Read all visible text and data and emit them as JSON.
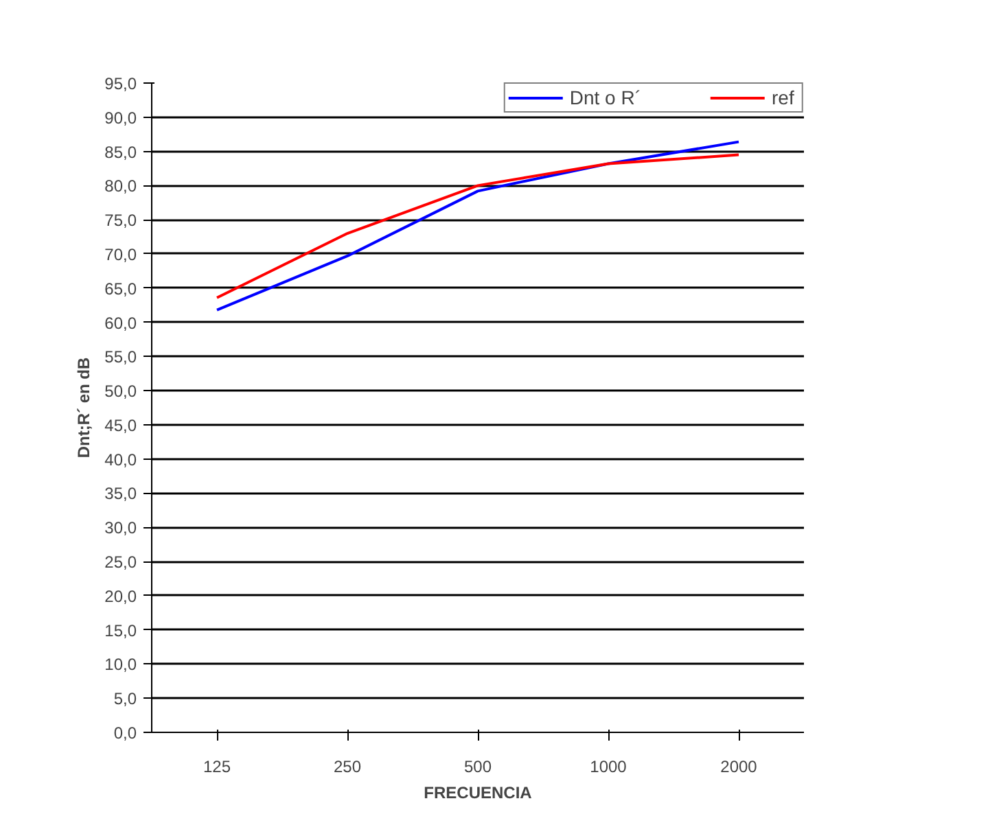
{
  "chart_data": {
    "type": "line",
    "xlabel": "FRECUENCIA",
    "ylabel": "Dnt;R´ en dB",
    "categories": [
      "125",
      "250",
      "500",
      "1000",
      "2000"
    ],
    "series": [
      {
        "name": "Dnt o R´",
        "color": "#0000ff",
        "values": [
          61.8,
          69.7,
          79.2,
          83.2,
          86.4
        ]
      },
      {
        "name": "ref",
        "color": "#ff0000",
        "values": [
          63.6,
          73.0,
          80.0,
          83.2,
          84.5
        ]
      }
    ],
    "ylim": [
      0,
      95
    ],
    "yticks": [
      {
        "value": 0,
        "label": "0,0"
      },
      {
        "value": 5,
        "label": "5,0"
      },
      {
        "value": 10,
        "label": "10,0"
      },
      {
        "value": 15,
        "label": "15,0"
      },
      {
        "value": 20,
        "label": "20,0"
      },
      {
        "value": 25,
        "label": "25,0"
      },
      {
        "value": 30,
        "label": "30,0"
      },
      {
        "value": 35,
        "label": "35,0"
      },
      {
        "value": 40,
        "label": "40,0"
      },
      {
        "value": 45,
        "label": "45,0"
      },
      {
        "value": 50,
        "label": "50,0"
      },
      {
        "value": 55,
        "label": "55,0"
      },
      {
        "value": 60,
        "label": "60,0"
      },
      {
        "value": 65,
        "label": "65,0"
      },
      {
        "value": 70,
        "label": "70,0"
      },
      {
        "value": 75,
        "label": "75,0"
      },
      {
        "value": 80,
        "label": "80,0"
      },
      {
        "value": 85,
        "label": "85,0"
      },
      {
        "value": 90,
        "label": "90,0"
      },
      {
        "value": 95,
        "label": "95,0"
      }
    ],
    "grid": "y",
    "legend": "top right"
  }
}
